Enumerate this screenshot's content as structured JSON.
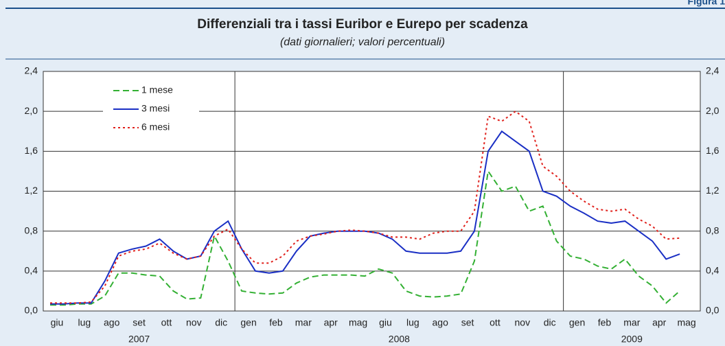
{
  "figure_label": "Figura 1",
  "chart_data": {
    "type": "line",
    "title": "Differenziali tra i tassi Euribor e Eurepo per scadenza",
    "subtitle": "(dati giornalieri; valori percentuali)",
    "categories": [
      "giu",
      null,
      "lug",
      null,
      "ago",
      null,
      "set",
      null,
      "ott",
      null,
      "nov",
      null,
      "dic",
      null,
      "gen",
      null,
      "feb",
      null,
      "mar",
      null,
      "apr",
      null,
      "mag",
      null,
      "giu",
      null,
      "lug",
      null,
      "ago",
      null,
      "set",
      null,
      "ott",
      null,
      "nov",
      null,
      "dic",
      null,
      "gen",
      null,
      "feb",
      null,
      "mar",
      null,
      "apr",
      null,
      "mag",
      null
    ],
    "years": [
      "2007",
      "2008",
      "2009"
    ],
    "series": [
      {
        "name": "1 mese",
        "color": "#33b033",
        "dash": "9 5",
        "values": [
          0.06,
          0.06,
          0.07,
          0.07,
          0.15,
          0.38,
          0.38,
          0.36,
          0.35,
          0.2,
          0.12,
          0.13,
          0.75,
          0.5,
          0.2,
          0.18,
          0.17,
          0.18,
          0.28,
          0.34,
          0.36,
          0.36,
          0.36,
          0.35,
          0.42,
          0.38,
          0.2,
          0.15,
          0.14,
          0.15,
          0.17,
          0.5,
          1.4,
          1.2,
          1.25,
          1.0,
          1.05,
          0.7,
          0.55,
          0.52,
          0.45,
          0.42,
          0.52,
          0.35,
          0.25,
          0.08,
          0.2,
          null
        ]
      },
      {
        "name": "3 mesi",
        "color": "#1a2fc4",
        "dash": "",
        "values": [
          0.07,
          0.07,
          0.08,
          0.08,
          0.3,
          0.58,
          0.62,
          0.65,
          0.72,
          0.6,
          0.52,
          0.55,
          0.8,
          0.9,
          0.62,
          0.4,
          0.38,
          0.4,
          0.6,
          0.75,
          0.78,
          0.8,
          0.8,
          0.8,
          0.78,
          0.72,
          0.6,
          0.58,
          0.58,
          0.58,
          0.6,
          0.8,
          1.6,
          1.8,
          1.7,
          1.6,
          1.2,
          1.15,
          1.05,
          0.98,
          0.9,
          0.88,
          0.9,
          0.8,
          0.7,
          0.52,
          0.57,
          null
        ]
      },
      {
        "name": "6 mesi",
        "color": "#e0201b",
        "dash": "3 4",
        "values": [
          0.08,
          0.08,
          0.08,
          0.09,
          0.25,
          0.55,
          0.6,
          0.62,
          0.68,
          0.58,
          0.52,
          0.55,
          0.75,
          0.82,
          0.62,
          0.48,
          0.48,
          0.55,
          0.7,
          0.75,
          0.77,
          0.8,
          0.81,
          0.8,
          0.78,
          0.74,
          0.74,
          0.72,
          0.78,
          0.8,
          0.8,
          1.0,
          1.95,
          1.9,
          2.0,
          1.9,
          1.45,
          1.35,
          1.2,
          1.1,
          1.02,
          1.0,
          1.02,
          0.92,
          0.85,
          0.72,
          0.73,
          null
        ]
      }
    ],
    "ylim": [
      0,
      2.4
    ],
    "yticks": [
      {
        "value": 0,
        "label": "0,0"
      },
      {
        "value": 0.4,
        "label": "0,4"
      },
      {
        "value": 0.8,
        "label": "0,8"
      },
      {
        "value": 1.2,
        "label": "1,2"
      },
      {
        "value": 1.6,
        "label": "1,6"
      },
      {
        "value": 2.0,
        "label": "2,0"
      },
      {
        "value": 2.4,
        "label": "2,4"
      }
    ],
    "grid": true,
    "legend": "top-left"
  }
}
